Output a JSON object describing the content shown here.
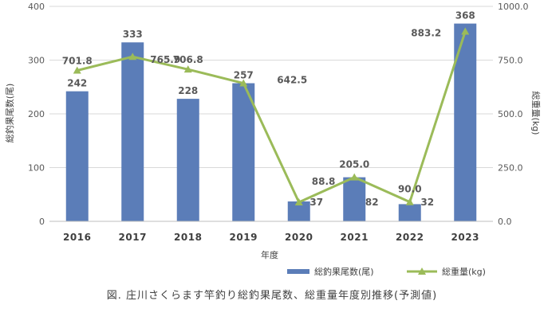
{
  "chart_data": {
    "type": "bar+line",
    "categories": [
      "2016",
      "2017",
      "2018",
      "2019",
      "2020",
      "2021",
      "2022",
      "2023"
    ],
    "series": [
      {
        "name": "総釣果尾数(尾)",
        "type": "bar",
        "axis": "left",
        "color": "#5B7DB8",
        "values": [
          242,
          333,
          228,
          257,
          37,
          82,
          32,
          368
        ]
      },
      {
        "name": "総重量(kg)",
        "type": "line",
        "axis": "right",
        "color": "#9BBB59",
        "values": [
          701.8,
          765.9,
          706.8,
          642.5,
          88.8,
          205.0,
          90.0,
          883.2
        ]
      }
    ],
    "bar_labels": [
      "242",
      "333",
      "228",
      "257",
      "37",
      "82",
      "32",
      "368"
    ],
    "line_labels": [
      "701.8",
      "765.9",
      "706.8",
      "642.5",
      "88.8",
      "205.0",
      "90.0",
      "883.2"
    ],
    "xlabel": "年度",
    "ylabel_left": "総釣果尾数(尾)",
    "ylabel_right": "総重量(kg)",
    "ylim_left": [
      0,
      400
    ],
    "ylim_right": [
      0,
      1000
    ],
    "yticks_left": [
      "0",
      "100",
      "200",
      "300",
      "400"
    ],
    "yticks_right": [
      "0.0",
      "250.0",
      "500.0",
      "750.0",
      "1000.0"
    ],
    "grid": true,
    "legend_position": "bottom-right",
    "caption": "図. 庄川さくらます竿釣り総釣果尾数、総重量年度別推移(予測値)"
  }
}
